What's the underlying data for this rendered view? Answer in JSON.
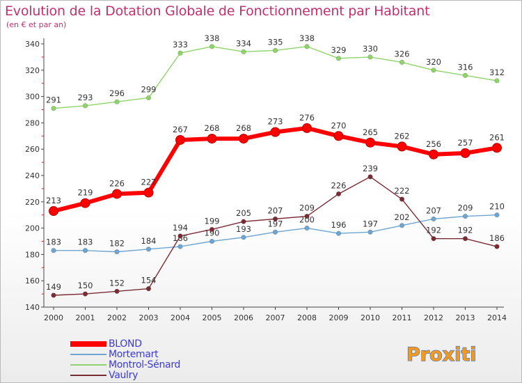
{
  "title": "Evolution de la Dotation Globale de Fonctionnement par Habitant",
  "subtitle": "(en € et par an)",
  "logo_text": "Proxiti",
  "chart_data": {
    "type": "line",
    "title": "Evolution de la Dotation Globale de Fonctionnement par Habitant",
    "subtitle": "(en € et par an)",
    "xlabel": "",
    "ylabel": "",
    "x": [
      "2000",
      "2001",
      "2002",
      "2003",
      "2004",
      "2005",
      "2006",
      "2007",
      "2008",
      "2009",
      "2010",
      "2011",
      "2012",
      "2013",
      "2014"
    ],
    "ylim": [
      140,
      340
    ],
    "yticks": [
      140,
      160,
      180,
      200,
      220,
      240,
      260,
      280,
      300,
      320,
      340
    ],
    "grid": false,
    "legend_position": "bottom-left",
    "series": [
      {
        "name": "BLOND",
        "color": "#ff0000",
        "emphasis": true,
        "values": [
          213,
          219,
          226,
          227,
          267,
          268,
          268,
          273,
          276,
          270,
          265,
          262,
          256,
          257,
          261
        ]
      },
      {
        "name": "Mortemart",
        "color": "#6ea5d2",
        "emphasis": false,
        "values": [
          183,
          183,
          182,
          184,
          186,
          190,
          193,
          197,
          200,
          196,
          197,
          202,
          207,
          209,
          210
        ]
      },
      {
        "name": "Montrol-Sénard",
        "color": "#8fd46a",
        "emphasis": false,
        "values": [
          291,
          293,
          296,
          299,
          333,
          338,
          334,
          335,
          338,
          329,
          330,
          326,
          320,
          316,
          312
        ]
      },
      {
        "name": "Vaulry",
        "color": "#7a2c34",
        "emphasis": false,
        "values": [
          149,
          150,
          152,
          154,
          194,
          199,
          205,
          207,
          209,
          226,
          239,
          222,
          192,
          192,
          186
        ]
      }
    ]
  }
}
